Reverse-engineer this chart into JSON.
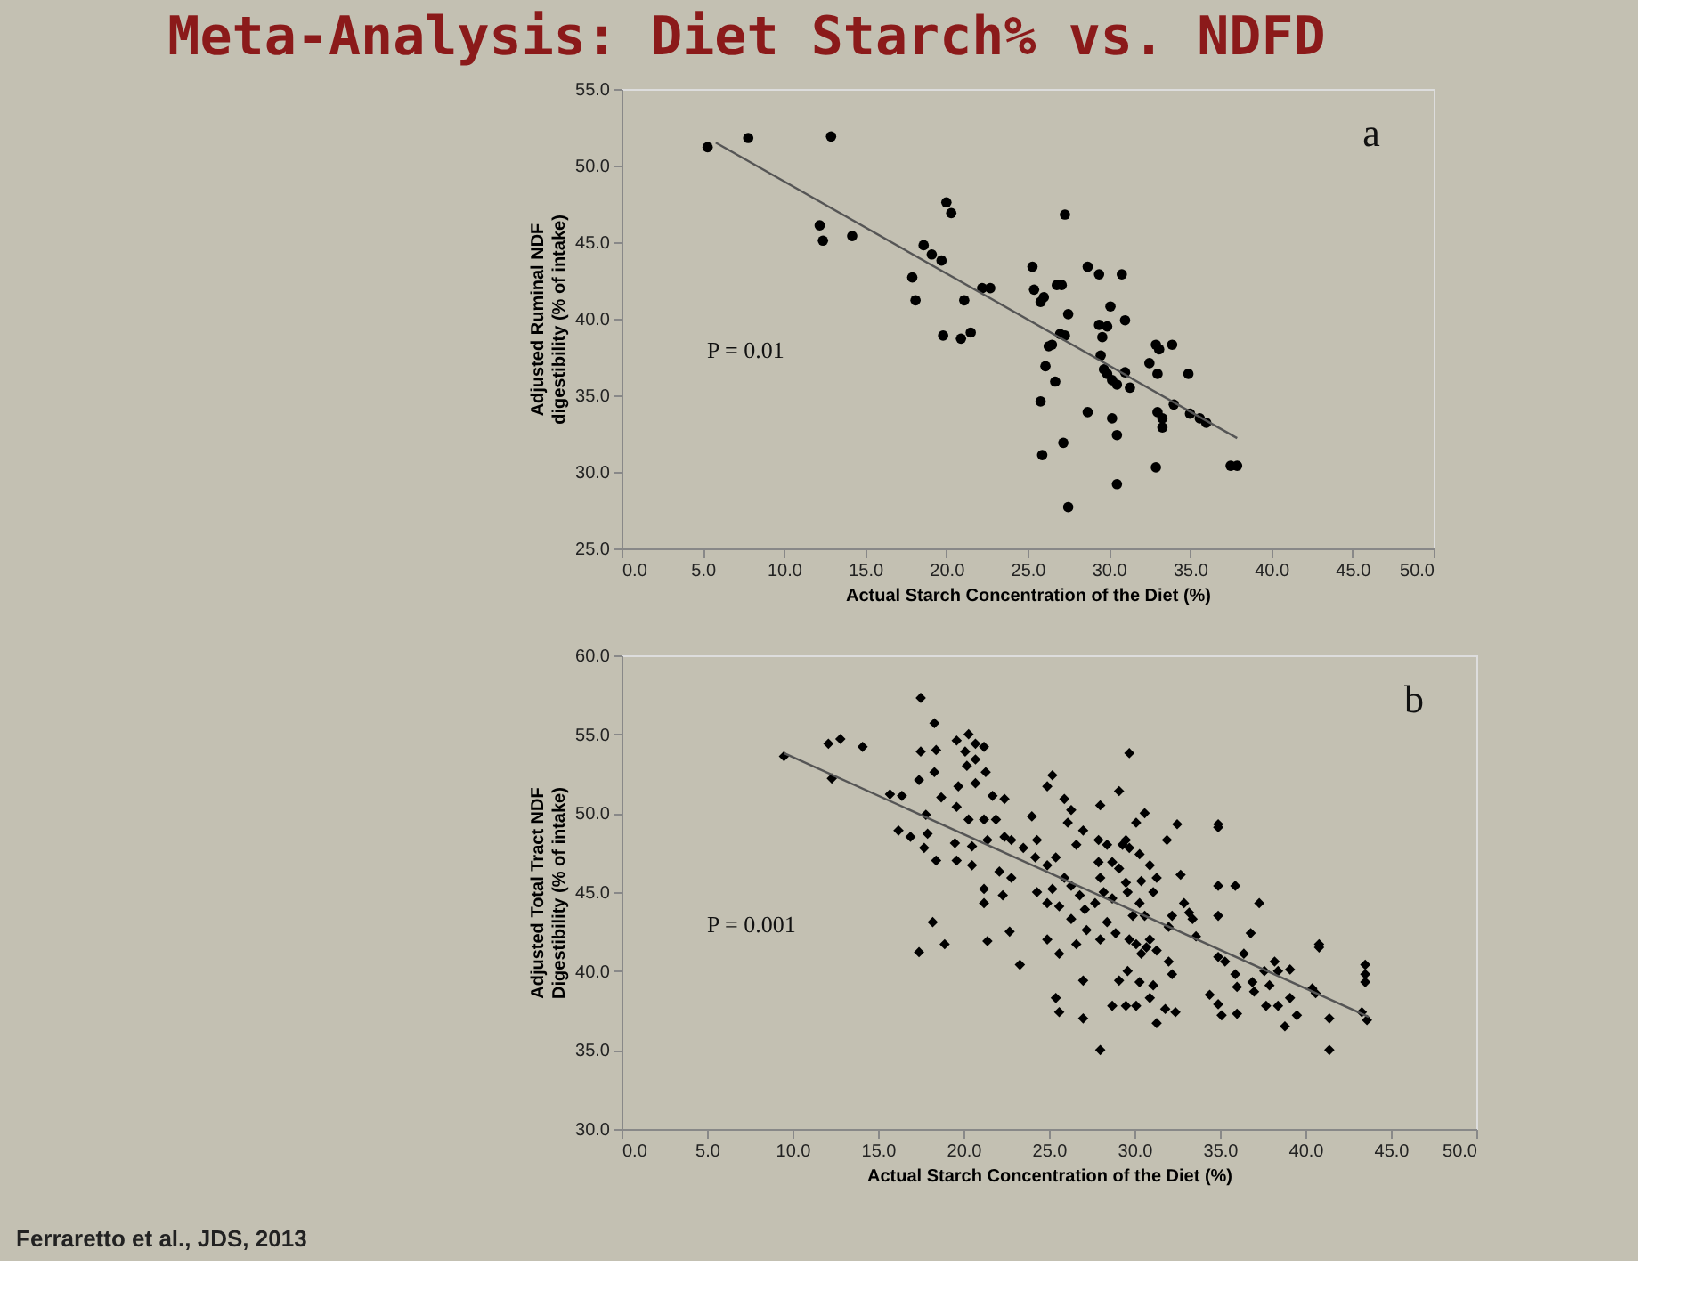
{
  "chart_data": [
    {
      "type": "scatter",
      "title": "Meta-Analysis: Diet Starch% vs. NDFD",
      "xlabel": "Actual Starch Concentration of the Diet (%)",
      "ylabel": "Adjusted Ruminal NDF digestibility (% of intake)",
      "marker": "circle",
      "xlim": [
        0,
        50
      ],
      "xticks": [
        {
          "value": 0,
          "label": "0.0"
        },
        {
          "value": 5,
          "label": "5.0"
        },
        {
          "value": 10,
          "label": "10.0"
        },
        {
          "value": 15,
          "label": "15.0"
        },
        {
          "value": 20,
          "label": "20.0"
        },
        {
          "value": 25,
          "label": "25.0"
        },
        {
          "value": 30,
          "label": "30.0"
        },
        {
          "value": 35,
          "label": "35.0"
        },
        {
          "value": 40,
          "label": "40.0"
        },
        {
          "value": 45,
          "label": "45.0"
        },
        {
          "value": 50,
          "label": "50.0"
        }
      ],
      "ylim": [
        25,
        55
      ],
      "yticks": [
        {
          "value": 25,
          "label": "25.0"
        },
        {
          "value": 30,
          "label": "30.0"
        },
        {
          "value": 35,
          "label": "35.0"
        },
        {
          "value": 40,
          "label": "40.0"
        },
        {
          "value": 45,
          "label": "45.0"
        },
        {
          "value": 50,
          "label": "50.0"
        },
        {
          "value": 55,
          "label": "55.0"
        }
      ],
      "annotations": [
        "a",
        "P = 0.01"
      ],
      "series": [
        {
          "color": "#000000",
          "x": [
            5.3,
            7.8,
            12.9,
            12.2,
            12.4,
            14.2,
            17.9,
            18.1,
            18.6,
            19.1,
            19.7,
            20.0,
            20.3,
            19.8,
            20.9,
            21.5,
            21.1,
            22.2,
            22.7,
            25.3,
            25.4,
            25.8,
            26.0,
            26.8,
            27.1,
            27.3,
            27.5,
            27.0,
            27.3,
            26.3,
            26.5,
            26.1,
            26.7,
            25.8,
            25.9,
            27.2,
            27.5,
            28.7,
            29.4,
            30.8,
            30.1,
            31.0,
            29.4,
            29.9,
            29.6,
            29.5,
            29.7,
            29.9,
            30.2,
            30.5,
            31.0,
            31.3,
            28.7,
            30.2,
            30.5,
            30.5,
            32.5,
            32.9,
            33.1,
            33.9,
            33.0,
            34.9,
            34.0,
            33.0,
            33.3,
            33.3,
            32.9,
            35.0,
            35.6,
            36.0,
            37.5,
            37.9
          ],
          "values": [
            51.2,
            51.8,
            51.9,
            46.1,
            45.1,
            45.4,
            42.7,
            41.2,
            44.8,
            44.2,
            43.8,
            47.6,
            46.9,
            38.9,
            38.7,
            39.1,
            41.2,
            42.0,
            42.0,
            43.4,
            41.9,
            41.1,
            41.4,
            42.2,
            42.2,
            46.8,
            40.3,
            39.0,
            38.9,
            38.2,
            38.3,
            36.9,
            35.9,
            34.6,
            31.1,
            31.9,
            27.7,
            43.4,
            42.9,
            42.9,
            40.8,
            39.9,
            39.6,
            39.5,
            38.8,
            37.6,
            36.7,
            36.4,
            36.0,
            35.7,
            36.5,
            35.5,
            33.9,
            33.5,
            32.4,
            29.2,
            37.1,
            38.3,
            38.0,
            38.3,
            36.4,
            36.4,
            34.4,
            33.9,
            33.5,
            32.9,
            30.3,
            33.8,
            33.5,
            33.2,
            30.4,
            30.4
          ]
        },
        {
          "type": "line",
          "color": "#555555",
          "marker": "none",
          "x": [
            5.8,
            37.9
          ],
          "values": [
            51.5,
            32.2
          ]
        }
      ]
    },
    {
      "type": "scatter",
      "xlabel": "Actual Starch Concentration of the Diet (%)",
      "ylabel": "Adjusted Total Tract NDF Digestibility (% of intake)",
      "marker": "diamond",
      "xlim": [
        0,
        50
      ],
      "xticks": [
        {
          "value": 0,
          "label": "0.0"
        },
        {
          "value": 5,
          "label": "5.0"
        },
        {
          "value": 10,
          "label": "10.0"
        },
        {
          "value": 15,
          "label": "15.0"
        },
        {
          "value": 20,
          "label": "20.0"
        },
        {
          "value": 25,
          "label": "25.0"
        },
        {
          "value": 30,
          "label": "30.0"
        },
        {
          "value": 35,
          "label": "35.0"
        },
        {
          "value": 40,
          "label": "40.0"
        },
        {
          "value": 45,
          "label": "45.0"
        },
        {
          "value": 50,
          "label": "50.0"
        }
      ],
      "ylim": [
        30,
        60
      ],
      "yticks": [
        {
          "value": 30,
          "label": "30.0"
        },
        {
          "value": 35,
          "label": "35.0"
        },
        {
          "value": 40,
          "label": "40.0"
        },
        {
          "value": 45,
          "label": "45.0"
        },
        {
          "value": 50,
          "label": "50.0"
        },
        {
          "value": 55,
          "label": "55.0"
        },
        {
          "value": 60,
          "label": "60.0"
        }
      ],
      "annotations": [
        "b",
        "P = 0.001",
        "Ferraretto et al., JDS, 2013"
      ],
      "series": [
        {
          "color": "#000000",
          "x": [
            9.5,
            12.1,
            12.8,
            14.1,
            12.3,
            15.7,
            16.4,
            16.2,
            16.9,
            17.5,
            18.3,
            17.5,
            18.4,
            17.4,
            18.3,
            17.8,
            17.9,
            17.7,
            18.4,
            18.2,
            17.4,
            18.9,
            18.7,
            19.6,
            20.3,
            20.7,
            21.2,
            20.1,
            20.7,
            20.2,
            21.3,
            19.7,
            20.7,
            21.7,
            19.6,
            20.3,
            21.2,
            21.9,
            22.4,
            19.5,
            20.5,
            21.4,
            19.6,
            20.5,
            21.2,
            21.2,
            21.4,
            22.4,
            22.8,
            22.1,
            22.8,
            22.3,
            22.7,
            23.3,
            23.5,
            24.0,
            24.3,
            24.9,
            25.2,
            24.2,
            24.9,
            25.4,
            25.9,
            26.3,
            26.1,
            27.0,
            26.6,
            25.9,
            25.2,
            24.3,
            24.9,
            25.6,
            26.3,
            26.8,
            27.1,
            26.3,
            24.9,
            25.6,
            26.6,
            27.2,
            25.4,
            25.6,
            27.0,
            27.0,
            28.0,
            27.9,
            28.4,
            27.9,
            28.7,
            28.0,
            28.2,
            27.7,
            28.7,
            28.4,
            28.9,
            28.0,
            29.5,
            29.3,
            29.1,
            29.5,
            29.6,
            29.1,
            29.7,
            29.7,
            30.1,
            30.3,
            29.9,
            30.6,
            30.1,
            29.7,
            30.3,
            30.9,
            30.4,
            31.3,
            31.1,
            30.6,
            30.9,
            30.4,
            30.7,
            31.3,
            29.1,
            29.6,
            28.7,
            28.0,
            29.5,
            30.1,
            30.3,
            31.1,
            30.9,
            31.3,
            32.0,
            32.2,
            31.8,
            32.4,
            31.9,
            32.5,
            32.7,
            32.2,
            32.0,
            32.9,
            33.2,
            33.4,
            33.6,
            34.9,
            34.9,
            34.9,
            34.9,
            35.9,
            37.3,
            36.8,
            34.9,
            35.3,
            34.4,
            34.9,
            35.1,
            36.0,
            35.9,
            36.4,
            36.0,
            36.9,
            37.6,
            38.2,
            38.4,
            39.1,
            37.9,
            37.0,
            37.7,
            38.4,
            39.1,
            38.8,
            39.5,
            40.4,
            40.6,
            40.8,
            40.8,
            41.4,
            41.4,
            43.5,
            43.5,
            43.5,
            43.3,
            43.6
          ],
          "values": [
            53.6,
            54.4,
            54.7,
            54.2,
            52.2,
            51.2,
            51.1,
            48.9,
            48.5,
            57.3,
            55.7,
            53.9,
            54.0,
            52.1,
            52.6,
            49.9,
            48.7,
            47.8,
            47.0,
            43.1,
            41.2,
            41.7,
            51.0,
            54.6,
            55.0,
            54.4,
            54.2,
            53.9,
            53.4,
            53.0,
            52.6,
            51.7,
            51.9,
            51.1,
            50.4,
            49.6,
            49.6,
            49.6,
            50.9,
            48.1,
            47.9,
            48.3,
            47.0,
            46.7,
            45.2,
            44.3,
            41.9,
            48.5,
            48.3,
            46.3,
            45.9,
            44.8,
            42.5,
            40.4,
            47.8,
            49.8,
            48.3,
            51.7,
            52.4,
            47.2,
            46.7,
            47.2,
            50.9,
            50.2,
            49.4,
            48.9,
            48.0,
            45.9,
            45.2,
            45.0,
            44.3,
            44.1,
            45.4,
            44.8,
            43.9,
            43.3,
            42.0,
            41.1,
            41.7,
            42.6,
            38.3,
            37.4,
            39.4,
            37.0,
            50.5,
            48.3,
            48.0,
            46.9,
            46.9,
            45.9,
            45.0,
            44.3,
            44.6,
            43.1,
            42.4,
            42.0,
            48.3,
            48.0,
            46.5,
            45.6,
            45.0,
            51.4,
            53.8,
            42.0,
            41.7,
            44.3,
            43.5,
            50.0,
            49.4,
            47.8,
            47.4,
            46.7,
            45.7,
            45.9,
            45.0,
            43.5,
            42.0,
            41.1,
            41.5,
            41.3,
            39.4,
            40.0,
            37.8,
            35.0,
            37.8,
            37.8,
            39.3,
            39.1,
            38.3,
            36.7,
            40.6,
            39.8,
            37.6,
            37.4,
            48.3,
            49.3,
            46.1,
            43.5,
            42.8,
            44.3,
            43.7,
            43.3,
            42.2,
            49.3,
            49.1,
            45.4,
            43.5,
            45.4,
            44.3,
            42.4,
            40.9,
            40.6,
            38.5,
            37.9,
            37.2,
            37.3,
            39.8,
            41.1,
            39.0,
            39.3,
            40.0,
            40.6,
            40.0,
            40.1,
            39.1,
            38.7,
            37.8,
            37.8,
            38.3,
            36.5,
            37.2,
            38.9,
            38.6,
            41.7,
            41.5,
            37.0,
            35.0,
            40.4,
            39.8,
            39.3,
            37.4,
            36.9
          ]
        },
        {
          "type": "line",
          "color": "#555555",
          "marker": "none",
          "x": [
            9.5,
            43.7
          ],
          "values": [
            53.8,
            37.1
          ]
        }
      ]
    }
  ]
}
